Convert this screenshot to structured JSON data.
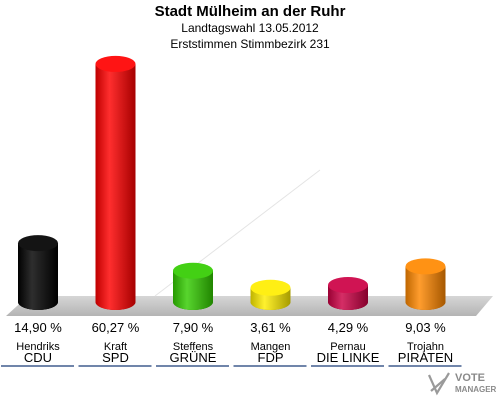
{
  "title": "Stadt Mülheim an der Ruhr",
  "subtitle1": "Landtagswahl 13.05.2012",
  "subtitle2": "Erststimmen Stimmbezirk 231",
  "logo": {
    "line1": "VOTE",
    "line2": "MANAGER"
  },
  "colors": {
    "CDU": "#000000",
    "SPD": "#ff0000",
    "GRÜNE": "#33cc00",
    "FDP": "#ffee00",
    "DIE LINKE": "#cc0044",
    "PIRATEN": "#ff8800",
    "floor": "#c8c8c8",
    "underline": "#1a3c78"
  },
  "chart_data": {
    "type": "bar",
    "title": "Stadt Mülheim an der Ruhr",
    "categories": [
      "CDU",
      "SPD",
      "GRÜNE",
      "FDP",
      "DIE LINKE",
      "PIRATEN"
    ],
    "candidates": [
      "Hendriks",
      "Kraft",
      "Steffens",
      "Mangen",
      "Pernau",
      "Trojahn"
    ],
    "values": [
      14.9,
      60.27,
      7.9,
      3.61,
      4.29,
      9.03
    ],
    "value_labels": [
      "14,90 %",
      "60,27 %",
      "7,90 %",
      "3,61 %",
      "4,29 %",
      "9,03 %"
    ],
    "unit": "%"
  }
}
